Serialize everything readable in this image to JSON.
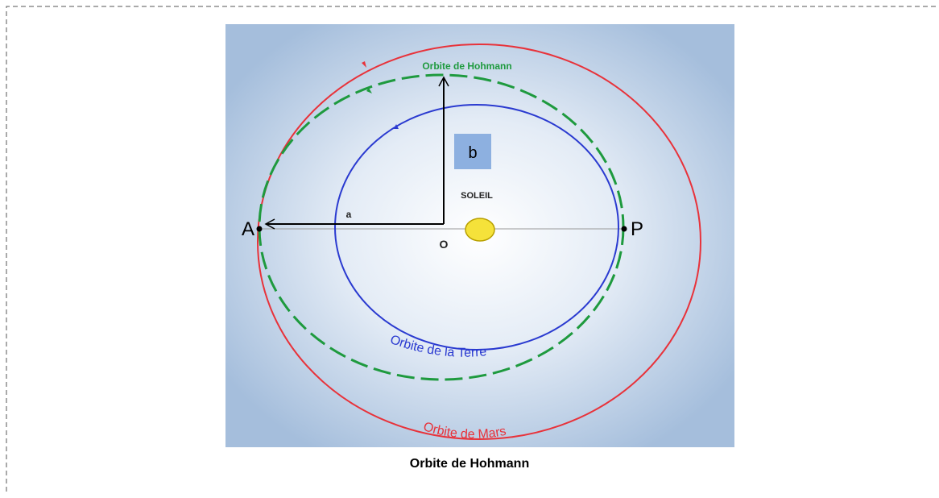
{
  "diagram": {
    "labels": {
      "hohmann": "Orbite de Hohmann",
      "b": "b",
      "sun": "SOLEIL",
      "a": "a",
      "apoapsis": "A",
      "center": "O",
      "periapsis": "P",
      "earth": "Orbite de la Terre",
      "mars": "Orbite de Mars"
    },
    "caption": "Orbite de Hohmann"
  }
}
